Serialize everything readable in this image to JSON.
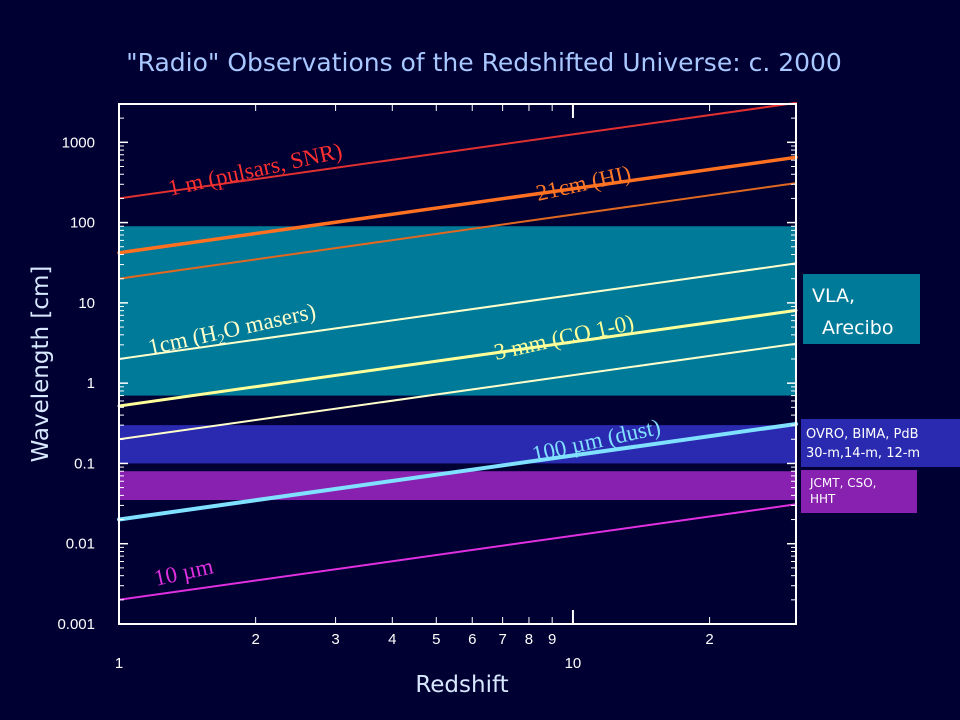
{
  "chart_data": {
    "type": "line",
    "title": "\"Radio\" Observations of the Redshifted Universe: c. 2000",
    "xlabel": "Redshift",
    "ylabel": "Wavelength [cm]",
    "xscale": "log",
    "yscale": "log",
    "xlim": [
      1,
      31
    ],
    "ylim": [
      0.001,
      3000
    ],
    "x_ticks": [
      1,
      10
    ],
    "x_tick_labels": [
      "1",
      "10"
    ],
    "x_minor_ticks": [
      2,
      3,
      4,
      5,
      6,
      7,
      8,
      9,
      20
    ],
    "x_minor_tick_labels": [
      "2",
      "3",
      "4",
      "5",
      "6",
      "7",
      "8",
      "9",
      "2"
    ],
    "y_ticks": [
      0.001,
      0.01,
      0.1,
      1,
      10,
      100,
      1000
    ],
    "y_tick_labels": [
      "0.001",
      "0.01",
      "0.1",
      "1",
      "10",
      "100",
      "1000"
    ],
    "grid": false,
    "series": [
      {
        "name": "1 m (pulsars, SNR)",
        "rest_cm": 100,
        "color": "#e03030",
        "x": [
          1,
          31
        ],
        "y": [
          200,
          3100
        ]
      },
      {
        "name": "21cm (HI)",
        "rest_cm": 21,
        "color": "#ff7020",
        "x": [
          1,
          31
        ],
        "y": [
          42,
          651
        ]
      },
      {
        "name": "",
        "rest_cm": 10,
        "color": "#e06820",
        "x": [
          1,
          31
        ],
        "y": [
          20,
          310
        ]
      },
      {
        "name": "1cm (H2O masers)",
        "rest_cm": 1,
        "color": "#ffffcc",
        "x": [
          1,
          31
        ],
        "y": [
          2,
          31
        ]
      },
      {
        "name": "3 mm (CO 1-0)",
        "rest_cm": 0.26,
        "color": "#ffff99",
        "x": [
          1,
          31
        ],
        "y": [
          0.52,
          8.06
        ]
      },
      {
        "name": "",
        "rest_cm": 0.1,
        "color": "#ffffcc",
        "x": [
          1,
          31
        ],
        "y": [
          0.2,
          3.1
        ]
      },
      {
        "name": "100 µm (dust)",
        "rest_cm": 0.01,
        "color": "#80e0ff",
        "x": [
          1,
          31
        ],
        "y": [
          0.02,
          0.31
        ]
      },
      {
        "name": "10 µm",
        "rest_cm": 0.001,
        "color": "#e030e0",
        "x": [
          1,
          31
        ],
        "y": [
          0.002,
          0.031
        ]
      }
    ],
    "bands": [
      {
        "name": "VLA, Arecibo",
        "color": "#007a99",
        "ymin": 0.7,
        "ymax": 90
      },
      {
        "name": "OVRO, BIMA, PdB 30-m,14-m, 12-m",
        "color": "#2a2ab0",
        "ymin": 0.1,
        "ymax": 0.3
      },
      {
        "name": "JCMT, CSO, HHT",
        "color": "#8820b0",
        "ymin": 0.035,
        "ymax": 0.08
      }
    ]
  },
  "labels": {
    "l1m": "1 m (pulsars, SNR)",
    "l21cm": "21cm (HI)",
    "l1cm_a": "1cm (H",
    "l1cm_sub": "2",
    "l1cm_b": "O masers)",
    "l3mm": "3 mm (CO 1-0)",
    "l100": "100 µm (dust)",
    "l10": "10 µm"
  },
  "bands_text": {
    "vla_1": "VLA,",
    "vla_2": "Arecibo",
    "ovro_1": "OVRO, BIMA, PdB",
    "ovro_2": "30-m,14-m, 12-m",
    "jcmt_1": "JCMT, CSO,",
    "jcmt_2": "HHT"
  }
}
